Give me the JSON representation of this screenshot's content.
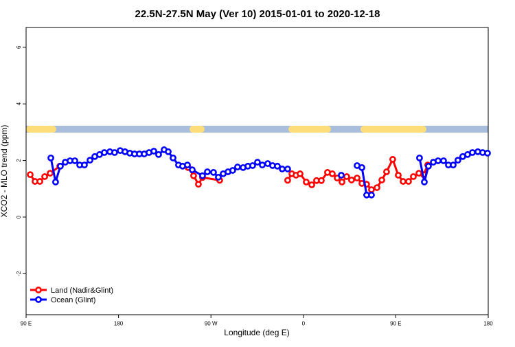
{
  "chart_data": {
    "type": "line",
    "title": "22.5N-27.5N May (Ver 10)   2015-01-01 to 2020-12-18",
    "x_label": "Longitude (deg E)",
    "y_label": "XCO2 - MLO trend (ppm)",
    "xlim": [
      90,
      540
    ],
    "xticks": [
      {
        "value": 90,
        "label": "90 E"
      },
      180,
      {
        "value": 270,
        "label": "90 W"
      },
      {
        "value": 360,
        "label": "0"
      },
      {
        "value": 450,
        "label": "90 E"
      },
      {
        "value": 540,
        "label": "180"
      }
    ],
    "ylim": [
      -3.45,
      6.7
    ],
    "yticks": [
      -2,
      0,
      2,
      4,
      6
    ],
    "legend": "bottom-left",
    "series": [
      {
        "name": "Land (Nadir&Glint)",
        "color": "#ff0000",
        "x": [
          94.0,
          98.7,
          103.4,
          108.1,
          113.4,
          122.8,
          null,
          247.8,
          253.1,
          257.8,
          261.8,
          278.5,
          null,
          344.7,
          348.8,
          352.8,
          356.8,
          362.8,
          368.2,
          372.8,
          377.5,
          383.5,
          388.2,
          392.9,
          397.6,
          402.2,
          406.9,
          412.3,
          417.0,
          421.6,
          426.3,
          431.7,
          436.4,
          441.0,
          447.0,
          452.4,
          457.1,
          462.4,
          467.1,
          472.5,
          477.1,
          481.1
        ],
        "values": [
          1.5,
          1.26,
          1.26,
          1.43,
          1.55,
          1.8,
          null,
          1.75,
          1.46,
          1.16,
          1.4,
          1.3,
          null,
          1.3,
          1.53,
          1.48,
          1.53,
          1.24,
          1.14,
          1.29,
          1.29,
          1.58,
          1.53,
          1.38,
          1.24,
          1.43,
          1.31,
          1.38,
          1.19,
          1.16,
          0.97,
          1.04,
          1.31,
          1.6,
          2.04,
          1.48,
          1.26,
          1.26,
          1.43,
          1.55,
          1.5,
          1.84
        ]
      },
      {
        "name": "Ocean (Glint)",
        "color": "#0000ff",
        "x": [
          114.1,
          118.7,
          123.4,
          128.1,
          132.8,
          137.5,
          142.2,
          146.8,
          152.2,
          156.9,
          161.5,
          166.2,
          171.6,
          176.2,
          181.6,
          186.3,
          191.0,
          195.6,
          200.3,
          205.0,
          209.7,
          214.4,
          219.0,
          224.4,
          228.4,
          233.1,
          238.4,
          242.4,
          247.1,
          251.8,
          261.8,
          266.5,
          272.5,
          277.2,
          281.9,
          286.6,
          291.2,
          295.9,
          301.3,
          306.0,
          310.6,
          315.3,
          320.0,
          325.3,
          330.0,
          334.7,
          339.4,
          344.7,
          null,
          396.9,
          null,
          412.3,
          417.0,
          421.6,
          426.3,
          null,
          473.1,
          477.8,
          481.8,
          486.5,
          491.2,
          496.5,
          501.2,
          505.9,
          510.5,
          515.2,
          519.9,
          524.6,
          529.9,
          534.6,
          539.3
        ],
        "values": [
          2.09,
          1.24,
          1.8,
          1.94,
          1.99,
          1.99,
          1.84,
          1.84,
          2.01,
          2.14,
          2.21,
          2.28,
          2.31,
          2.28,
          2.35,
          2.31,
          2.26,
          2.23,
          2.23,
          2.23,
          2.28,
          2.33,
          2.21,
          2.38,
          2.31,
          2.09,
          1.84,
          1.8,
          1.84,
          1.67,
          1.46,
          1.6,
          1.58,
          1.41,
          1.53,
          1.6,
          1.65,
          1.77,
          1.75,
          1.8,
          1.82,
          1.94,
          1.84,
          1.89,
          1.82,
          1.8,
          1.7,
          1.7,
          null,
          1.48,
          null,
          1.82,
          1.75,
          0.78,
          0.78,
          null,
          2.09,
          1.24,
          1.8,
          1.94,
          1.99,
          1.99,
          1.84,
          1.84,
          2.01,
          2.14,
          2.21,
          2.28,
          2.31,
          2.28,
          2.26
        ]
      }
    ]
  }
}
